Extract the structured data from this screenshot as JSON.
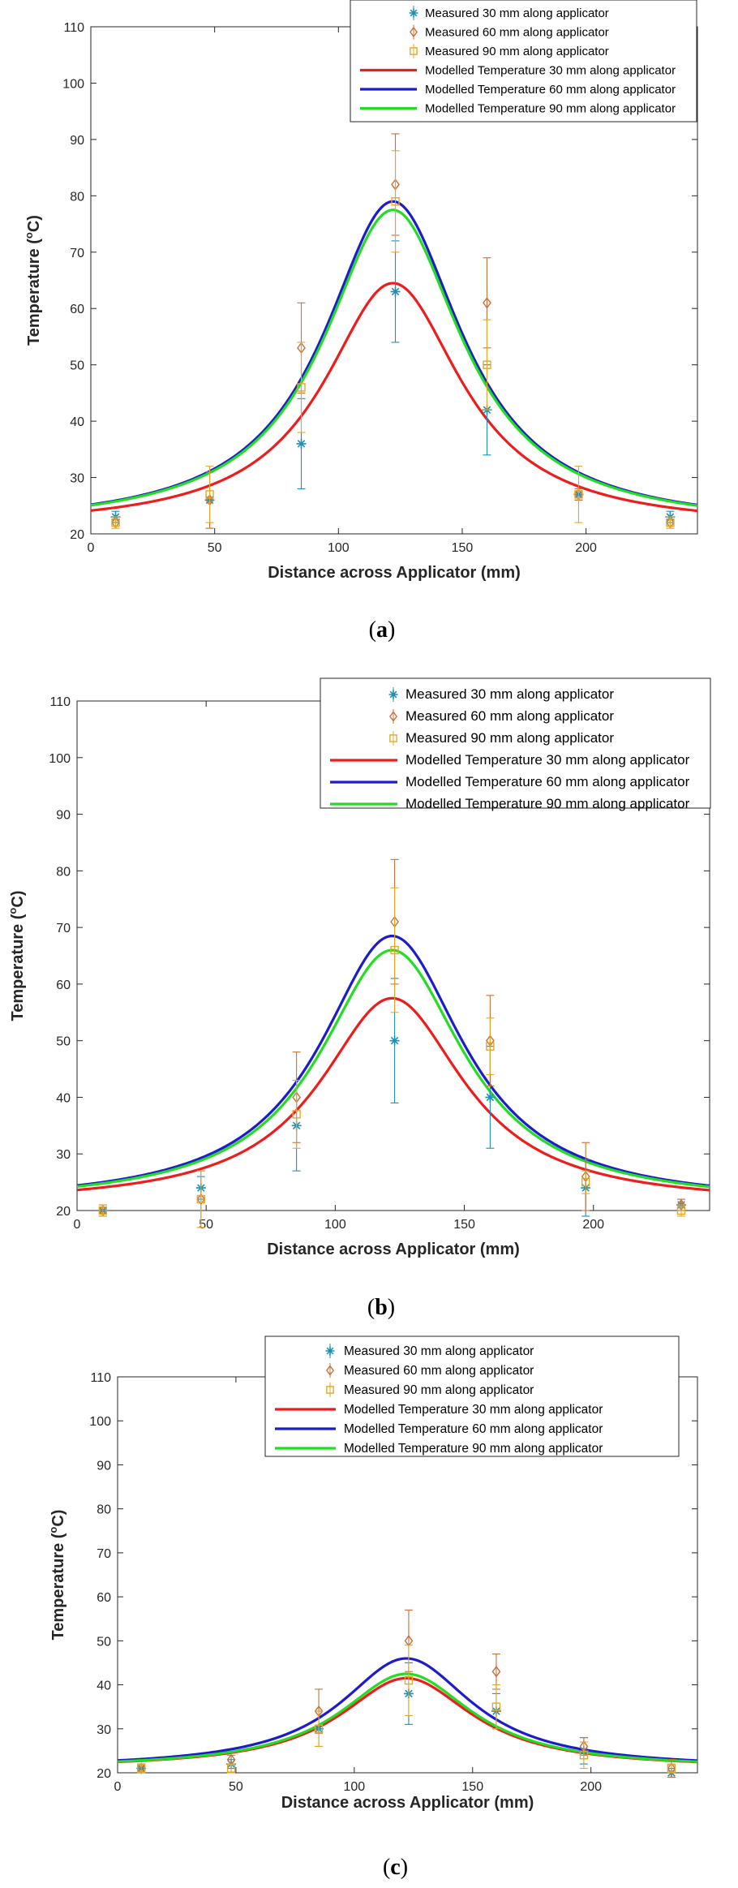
{
  "chart_data": [
    {
      "type": "line",
      "panel_label": "a",
      "caption_open": "(",
      "caption_letter": "a",
      "caption_close": ")",
      "xlabel": "Distance across Applicator (mm)",
      "ylabel_main": "Temperature (",
      "ylabel_sup": "o",
      "ylabel_end": "C)",
      "xlim": [
        0,
        245
      ],
      "ylim": [
        20,
        110
      ],
      "xticks": [
        0,
        50,
        100,
        150,
        200
      ],
      "yticks": [
        20,
        30,
        40,
        50,
        60,
        70,
        80,
        90,
        100,
        110
      ],
      "legend_position": "top-right",
      "measured": [
        {
          "name": "Measured 30 mm along applicator",
          "color": "#1f8fb5",
          "marker": "star",
          "points": [
            {
              "x": 10,
              "y": 23,
              "err": 1
            },
            {
              "x": 48,
              "y": 26,
              "err": 5
            },
            {
              "x": 85,
              "y": 36,
              "err": 8
            },
            {
              "x": 123,
              "y": 63,
              "err": 9
            },
            {
              "x": 160,
              "y": 42,
              "err": 8
            },
            {
              "x": 197,
              "y": 27,
              "err": 1
            },
            {
              "x": 234,
              "y": 23,
              "err": 1
            }
          ]
        },
        {
          "name": "Measured 60 mm along applicator",
          "color": "#c9703a",
          "marker": "diamond",
          "points": [
            {
              "x": 10,
              "y": 22,
              "err": 1
            },
            {
              "x": 48,
              "y": 26,
              "err": 5
            },
            {
              "x": 85,
              "y": 53,
              "err": 8
            },
            {
              "x": 123,
              "y": 82,
              "err": 9
            },
            {
              "x": 160,
              "y": 61,
              "err": 8
            },
            {
              "x": 197,
              "y": 27,
              "err": 1
            },
            {
              "x": 234,
              "y": 22,
              "err": 1
            }
          ]
        },
        {
          "name": "Measured 90 mm along applicator",
          "color": "#e0a82a",
          "marker": "square",
          "points": [
            {
              "x": 10,
              "y": 22,
              "err": 1
            },
            {
              "x": 48,
              "y": 27,
              "err": 5
            },
            {
              "x": 85,
              "y": 46,
              "err": 8
            },
            {
              "x": 123,
              "y": 79,
              "err": 9
            },
            {
              "x": 160,
              "y": 50,
              "err": 8
            },
            {
              "x": 197,
              "y": 27,
              "err": 5
            },
            {
              "x": 234,
              "y": 22,
              "err": 1
            }
          ]
        }
      ],
      "modelled": [
        {
          "name": "Modelled Temperature 30 mm along applicator",
          "color": "#ee1c1c",
          "base": 21.0,
          "peak": 64.5,
          "center": 122,
          "width": 34
        },
        {
          "name": "Modelled Temperature 60 mm along applicator",
          "color": "#1c1ccc",
          "base": 21.0,
          "peak": 79.0,
          "center": 122,
          "width": 34
        },
        {
          "name": "Modelled Temperature 90 mm along applicator",
          "color": "#22dd22",
          "base": 21.0,
          "peak": 77.5,
          "center": 122,
          "width": 34
        }
      ]
    },
    {
      "type": "line",
      "panel_label": "b",
      "caption_open": "(",
      "caption_letter": "b",
      "caption_close": ")",
      "xlabel": "Distance across Applicator (mm)",
      "ylabel_main": "Temperature (",
      "ylabel_sup": "o",
      "ylabel_end": "C)",
      "xlim": [
        0,
        245
      ],
      "ylim": [
        20,
        110
      ],
      "xticks": [
        0,
        50,
        100,
        150,
        200
      ],
      "yticks": [
        20,
        30,
        40,
        50,
        60,
        70,
        80,
        90,
        100,
        110
      ],
      "legend_position": "top-right",
      "measured": [
        {
          "name": "Measured 30 mm along applicator",
          "color": "#1f8fb5",
          "marker": "star",
          "points": [
            {
              "x": 10,
              "y": 20,
              "err": 1
            },
            {
              "x": 48,
              "y": 24,
              "err": 2
            },
            {
              "x": 85,
              "y": 35,
              "err": 8
            },
            {
              "x": 123,
              "y": 50,
              "err": 11
            },
            {
              "x": 160,
              "y": 40,
              "err": 9
            },
            {
              "x": 197,
              "y": 24,
              "err": 5
            },
            {
              "x": 234,
              "y": 21,
              "err": 1
            }
          ]
        },
        {
          "name": "Measured 60 mm along applicator",
          "color": "#c9703a",
          "marker": "diamond",
          "points": [
            {
              "x": 10,
              "y": 20,
              "err": 1
            },
            {
              "x": 48,
              "y": 22,
              "err": 5
            },
            {
              "x": 85,
              "y": 40,
              "err": 8
            },
            {
              "x": 123,
              "y": 71,
              "err": 11
            },
            {
              "x": 160,
              "y": 50,
              "err": 8
            },
            {
              "x": 197,
              "y": 26,
              "err": 6
            },
            {
              "x": 234,
              "y": 21,
              "err": 1
            }
          ]
        },
        {
          "name": "Measured 90 mm along applicator",
          "color": "#e0a82a",
          "marker": "square",
          "points": [
            {
              "x": 10,
              "y": 20,
              "err": 1
            },
            {
              "x": 48,
              "y": 22,
              "err": 5
            },
            {
              "x": 85,
              "y": 37,
              "err": 6
            },
            {
              "x": 123,
              "y": 66,
              "err": 11
            },
            {
              "x": 160,
              "y": 49,
              "err": 5
            },
            {
              "x": 197,
              "y": 25,
              "err": 2
            },
            {
              "x": 234,
              "y": 20,
              "err": 1
            }
          ]
        }
      ],
      "modelled": [
        {
          "name": "Modelled Temperature 30 mm along applicator",
          "color": "#ee1c1c",
          "base": 21.0,
          "peak": 57.5,
          "center": 122,
          "width": 34
        },
        {
          "name": "Modelled Temperature 60 mm along applicator",
          "color": "#1c1ccc",
          "base": 21.0,
          "peak": 68.5,
          "center": 122,
          "width": 34
        },
        {
          "name": "Modelled Temperature 90 mm along applicator",
          "color": "#22dd22",
          "base": 21.0,
          "peak": 66.0,
          "center": 122,
          "width": 34
        }
      ]
    },
    {
      "type": "line",
      "panel_label": "c",
      "caption_open": "(",
      "caption_letter": "c",
      "caption_close": ")",
      "xlabel": "Distance across Applicator (mm)",
      "ylabel_main": "Temperature (",
      "ylabel_sup": "o",
      "ylabel_end": "C)",
      "xlim": [
        0,
        245
      ],
      "ylim": [
        20,
        110
      ],
      "xticks": [
        0,
        50,
        100,
        150,
        200
      ],
      "yticks": [
        20,
        30,
        40,
        50,
        60,
        70,
        80,
        90,
        100,
        110
      ],
      "legend_position": "top-right",
      "measured": [
        {
          "name": "Measured 30 mm along applicator",
          "color": "#1f8fb5",
          "marker": "star",
          "points": [
            {
              "x": 10,
              "y": 21,
              "err": 1
            },
            {
              "x": 48,
              "y": 22,
              "err": 1
            },
            {
              "x": 85,
              "y": 30,
              "err": 4
            },
            {
              "x": 123,
              "y": 38,
              "err": 7
            },
            {
              "x": 160,
              "y": 34,
              "err": 4
            },
            {
              "x": 197,
              "y": 25,
              "err": 3
            },
            {
              "x": 234,
              "y": 20,
              "err": 1
            }
          ]
        },
        {
          "name": "Measured 60 mm along applicator",
          "color": "#c9703a",
          "marker": "diamond",
          "points": [
            {
              "x": 10,
              "y": 21,
              "err": 1
            },
            {
              "x": 48,
              "y": 23,
              "err": 1
            },
            {
              "x": 85,
              "y": 34,
              "err": 5
            },
            {
              "x": 123,
              "y": 50,
              "err": 7
            },
            {
              "x": 160,
              "y": 43,
              "err": 4
            },
            {
              "x": 197,
              "y": 26,
              "err": 2
            },
            {
              "x": 234,
              "y": 21,
              "err": 2
            }
          ]
        },
        {
          "name": "Measured 90 mm along applicator",
          "color": "#e0a82a",
          "marker": "square",
          "points": [
            {
              "x": 10,
              "y": 21,
              "err": 1
            },
            {
              "x": 48,
              "y": 21,
              "err": 1
            },
            {
              "x": 85,
              "y": 30,
              "err": 4
            },
            {
              "x": 123,
              "y": 41,
              "err": 8
            },
            {
              "x": 160,
              "y": 35,
              "err": 5
            },
            {
              "x": 197,
              "y": 24,
              "err": 3
            },
            {
              "x": 234,
              "y": 21,
              "err": 1
            }
          ]
        }
      ],
      "modelled": [
        {
          "name": "Modelled Temperature 30 mm along applicator",
          "color": "#ee1c1c",
          "base": 21.0,
          "peak": 41.5,
          "center": 122,
          "width": 34
        },
        {
          "name": "Modelled Temperature 60 mm along applicator",
          "color": "#1c1ccc",
          "base": 21.0,
          "peak": 46.0,
          "center": 122,
          "width": 34
        },
        {
          "name": "Modelled Temperature 90 mm along applicator",
          "color": "#22dd22",
          "base": 21.0,
          "peak": 42.5,
          "center": 122,
          "width": 34
        }
      ]
    }
  ]
}
